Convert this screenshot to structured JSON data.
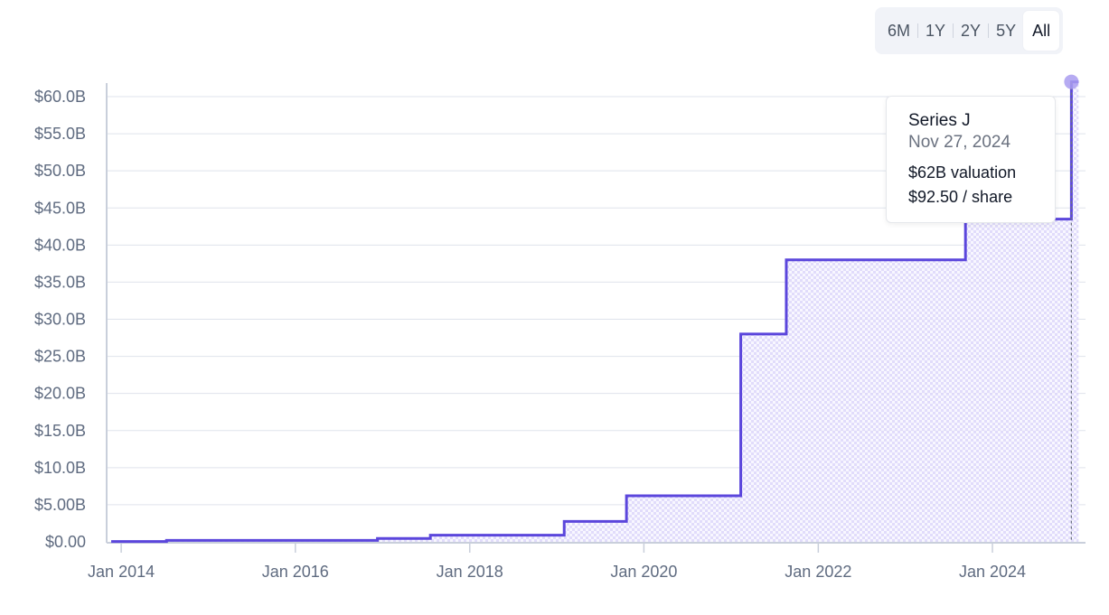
{
  "range_selector": {
    "options": [
      "6M",
      "1Y",
      "2Y",
      "5Y",
      "All"
    ],
    "selected": "All"
  },
  "colors": {
    "line": "#5b46dc",
    "fill_pattern": "#c9c1f3",
    "grid": "#dfe3ec",
    "tick_text": "#5f6b80",
    "marker": "#a99cf0"
  },
  "tooltip": {
    "title": "Series J",
    "date": "Nov 27, 2024",
    "valuation": "$62B valuation",
    "price": "$92.50 / share"
  },
  "chart_data": {
    "type": "line",
    "step": true,
    "y_unit": "billion USD",
    "ylim": [
      0,
      60
    ],
    "xlim": [
      "2013-11-01",
      "2025-01-10"
    ],
    "x_ticks": [
      "2014-01-01",
      "2016-01-01",
      "2018-01-01",
      "2020-01-01",
      "2022-01-01",
      "2024-01-01"
    ],
    "x_tick_labels": [
      "Jan 2014",
      "Jan 2016",
      "Jan 2018",
      "Jan 2020",
      "Jan 2022",
      "Jan 2024"
    ],
    "y_ticks": [
      0,
      5,
      10,
      15,
      20,
      25,
      30,
      35,
      40,
      45,
      50,
      55,
      60
    ],
    "y_tick_labels": [
      "$0.00",
      "$5.00B",
      "$10.0B",
      "$15.0B",
      "$20.0B",
      "$25.0B",
      "$30.0B",
      "$35.0B",
      "$40.0B",
      "$45.0B",
      "$50.0B",
      "$55.0B",
      "$60.0B"
    ],
    "grid": true,
    "series": [
      {
        "points": [
          {
            "x": "2013-11-20",
            "y": 0.05
          },
          {
            "x": "2014-07-10",
            "y": 0.2
          },
          {
            "x": "2016-12-10",
            "y": 0.45
          },
          {
            "x": "2017-07-20",
            "y": 0.9
          },
          {
            "x": "2019-02-01",
            "y": 2.75
          },
          {
            "x": "2019-10-20",
            "y": 6.2
          },
          {
            "x": "2021-02-10",
            "y": 28
          },
          {
            "x": "2021-08-20",
            "y": 38
          },
          {
            "x": "2023-09-10",
            "y": 43.5
          },
          {
            "x": "2024-11-27",
            "y": 62
          }
        ]
      }
    ]
  }
}
